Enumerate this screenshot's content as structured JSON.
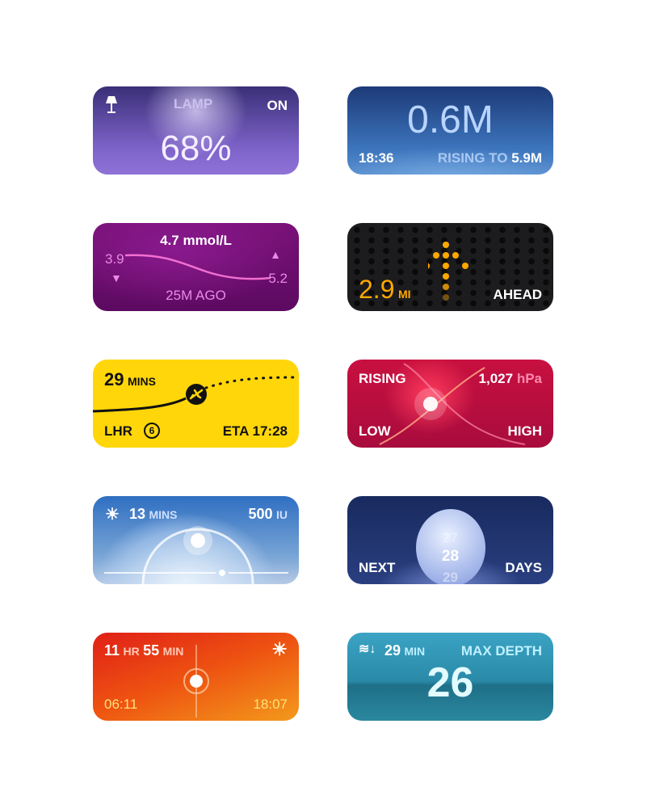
{
  "lamp": {
    "title": "LAMP",
    "state": "ON",
    "level": "68%",
    "icon": "lamp-icon"
  },
  "tide": {
    "height": "0.6M",
    "time": "18:36",
    "rising_label": "RISING TO",
    "rising_value": "5.9M"
  },
  "glucose": {
    "value": "4.7",
    "unit": "mmol/L",
    "low": "3.9",
    "high": "5.2",
    "ago": "25M AGO"
  },
  "navigation": {
    "distance": "2.9",
    "unit": "MI",
    "direction": "AHEAD",
    "icon": "arrow-up-icon",
    "accent": "#ffa800"
  },
  "flight": {
    "minutes": "29",
    "minutes_unit": "MINS",
    "airport": "LHR",
    "terminal": "6",
    "eta": "ETA 17:28",
    "icon": "airplane-icon",
    "color": "#ffd60a"
  },
  "pressure": {
    "trend": "RISING",
    "value": "1,027",
    "unit": "hPa",
    "low": "LOW",
    "high": "HIGH"
  },
  "vitamin_d": {
    "minutes": "13",
    "minutes_unit": "MINS",
    "dose": "500",
    "dose_unit": "IU",
    "icon": "sun-icon"
  },
  "moon": {
    "prev": "27",
    "current": "28",
    "next_day": "29",
    "left": "NEXT",
    "right": "DAYS"
  },
  "daylight": {
    "hours": "11",
    "hours_unit": "HR",
    "minutes": "55",
    "minutes_unit": "MIN",
    "sunrise": "06:11",
    "sunset": "18:07",
    "icon": "sun-icon"
  },
  "dive": {
    "minutes": "29",
    "minutes_unit": "MIN",
    "label": "MAX DEPTH",
    "depth": "26",
    "icon": "dive-icon"
  }
}
